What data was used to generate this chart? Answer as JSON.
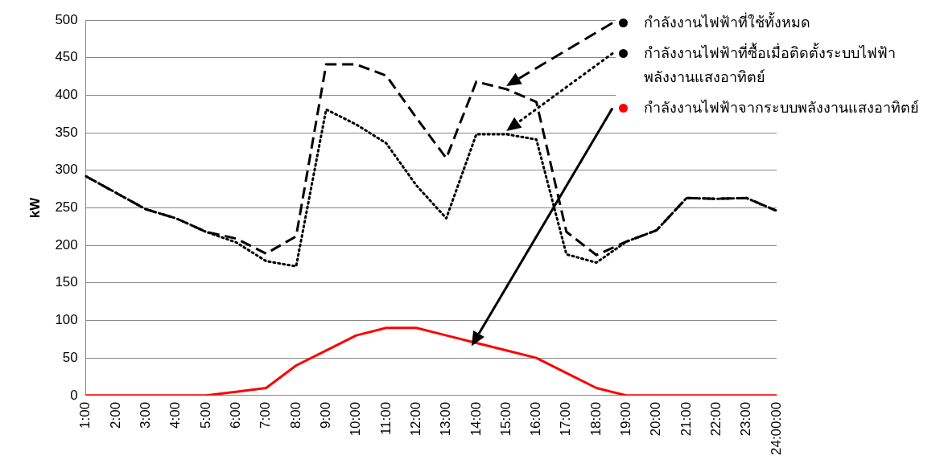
{
  "chart_data": {
    "type": "line",
    "ylabel": "kW",
    "categories": [
      "1:00",
      "2:00",
      "3:00",
      "4:00",
      "5:00",
      "6:00",
      "7:00",
      "8:00",
      "9:00",
      "10:00",
      "11:00",
      "12:00",
      "13:00",
      "14:00",
      "15:00",
      "16:00",
      "17:00",
      "18:00",
      "19:00",
      "20:00",
      "21:00",
      "22:00",
      "23:00",
      "24:00:00"
    ],
    "series": [
      {
        "name": "กำลังงานไฟฟ้าที่ใช้ทั้งหมด",
        "color": "#000000",
        "line_style": "dashed",
        "values": [
          292,
          270,
          248,
          236,
          218,
          209,
          189,
          212,
          441,
          441,
          426,
          370,
          316,
          418,
          408,
          391,
          218,
          187,
          205,
          220,
          263,
          262,
          263,
          246
        ]
      },
      {
        "name": "กำลังงานไฟฟ้าที่ซื้อเมื่อติดตั้งระบบไฟฟ้าพลังงานแสงอาทิตย์",
        "color": "#000000",
        "line_style": "dotted",
        "values": [
          292,
          270,
          248,
          236,
          218,
          204,
          179,
          172,
          381,
          361,
          336,
          280,
          236,
          348,
          348,
          341,
          188,
          177,
          205,
          220,
          263,
          262,
          263,
          246
        ]
      },
      {
        "name": "กำลังงานไฟฟ้าจากระบบพลังงานแสงอาทิตย์",
        "color": "#ff0000",
        "line_style": "solid",
        "values": [
          0,
          0,
          0,
          0,
          0,
          5,
          10,
          40,
          60,
          80,
          90,
          90,
          80,
          70,
          60,
          50,
          30,
          10,
          0,
          0,
          0,
          0,
          0,
          0
        ]
      }
    ],
    "ylim": [
      0,
      500
    ],
    "yticks": [
      0,
      50,
      100,
      150,
      200,
      250,
      300,
      350,
      400,
      450,
      500
    ],
    "grid": "y",
    "legend": "top right",
    "marker": "none"
  }
}
